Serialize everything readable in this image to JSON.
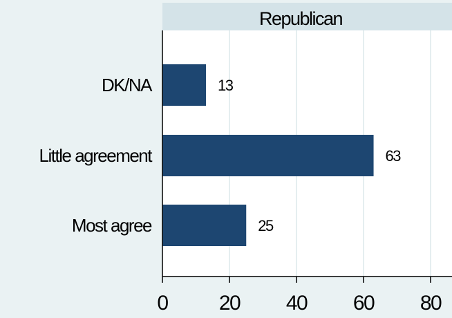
{
  "chart_data": {
    "type": "bar",
    "orientation": "horizontal",
    "panel_title": "Republican",
    "categories": [
      "DK/NA",
      "Little agreement",
      "Most agree"
    ],
    "values": [
      13,
      63,
      25
    ],
    "data_labels": [
      "13",
      "63",
      "25"
    ],
    "xlim": [
      0,
      80
    ],
    "xticks": [
      0,
      20,
      40,
      60,
      80
    ],
    "xtick_labels": [
      "0",
      "20",
      "40",
      "60",
      "80"
    ],
    "grid": true,
    "colors": {
      "bar": "#1d4671",
      "panel_header": "#d4e3e8",
      "plot_background": "#ffffff",
      "page_background": "#eaf2f3",
      "gridline": "#e5eef0"
    }
  }
}
